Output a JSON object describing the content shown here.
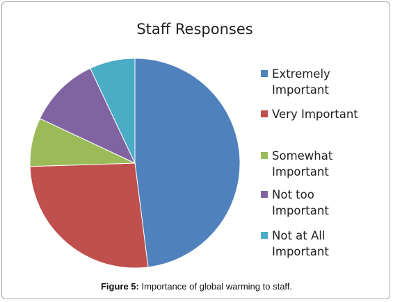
{
  "chart_data": {
    "type": "pie",
    "title": "Staff Responses",
    "categories": [
      "Extremely Important",
      "Very Important",
      "Somewhat Important",
      "Not too Important",
      "Not at All Important"
    ],
    "legend_labels": [
      "Extremely\nImportant",
      "Very Important",
      "Somewhat\nImportant",
      "Not too\nImportant",
      "Not at All\nImportant"
    ],
    "values": [
      48,
      26.5,
      7.5,
      11,
      7
    ],
    "colors": [
      "#4f81bd",
      "#c0504d",
      "#9bbb59",
      "#8064a2",
      "#4bacc6"
    ],
    "start": "12 o'clock, clockwise",
    "legend_position": "right"
  },
  "caption": {
    "label": "Figure 5:",
    "text": " Importance of global warming to staff."
  }
}
